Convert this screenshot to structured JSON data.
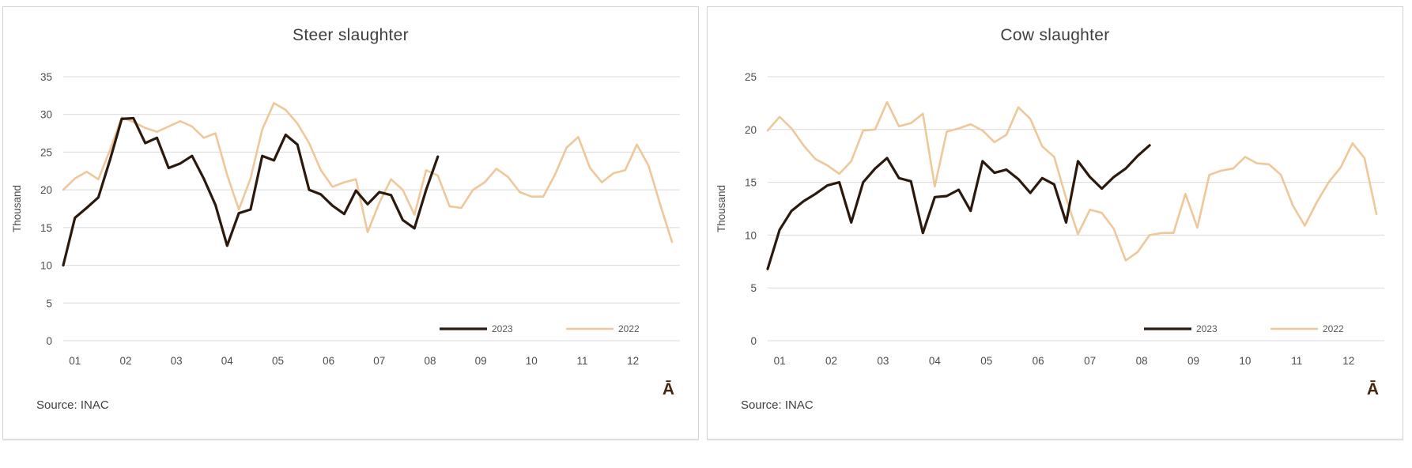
{
  "page": {
    "background": "#ffffff",
    "panel_border": "#d2d2d2",
    "grid_color": "#d9d9d9",
    "text_color": "#3f3f3f"
  },
  "chart_data": [
    {
      "type": "line",
      "title": "Steer slaughter",
      "y_axis_label": "Thousand",
      "source": "Source: INAC",
      "watermark": "Ā",
      "ylim": [
        0,
        35
      ],
      "ytick_step": 5,
      "yticks": [
        0,
        5,
        10,
        15,
        20,
        25,
        30,
        35
      ],
      "x_categories": [
        "01",
        "02",
        "03",
        "04",
        "05",
        "06",
        "07",
        "08",
        "09",
        "10",
        "11",
        "12"
      ],
      "x_note": "weekly observations, months 01-12",
      "grid": "horizontal",
      "legend_position": "inside-bottom-right",
      "series": [
        {
          "name": "2023",
          "color": "#2b190d",
          "values": [
            10.0,
            16.3,
            17.6,
            19.0,
            24.0,
            29.4,
            29.5,
            26.2,
            26.9,
            22.9,
            23.5,
            24.5,
            21.5,
            18.0,
            12.6,
            16.9,
            17.4,
            24.5,
            23.9,
            27.3,
            26.0,
            20.0,
            19.4,
            17.9,
            16.8,
            19.9,
            18.1,
            19.7,
            19.3,
            16.0,
            14.9,
            20.0,
            24.4
          ]
        },
        {
          "name": "2022",
          "color": "#eec79a",
          "values": [
            20.0,
            21.5,
            22.4,
            21.4,
            25.3,
            29.6,
            29.0,
            28.2,
            27.7,
            28.4,
            29.1,
            28.4,
            26.9,
            27.5,
            22.0,
            17.4,
            21.5,
            28.0,
            31.5,
            30.6,
            28.8,
            26.2,
            22.6,
            20.4,
            21.0,
            21.4,
            14.4,
            18.3,
            21.4,
            20.0,
            16.7,
            22.6,
            21.9,
            17.8,
            17.6,
            20.0,
            21.0,
            22.8,
            21.7,
            19.7,
            19.1,
            19.1,
            22.0,
            25.6,
            27.0,
            22.9,
            21.0,
            22.2,
            22.6,
            26.0,
            23.2,
            18.0,
            13.1
          ]
        }
      ]
    },
    {
      "type": "line",
      "title": "Cow slaughter",
      "y_axis_label": "Thousand",
      "source": "Source: INAC",
      "watermark": "Ā",
      "ylim": [
        0,
        25
      ],
      "ytick_step": 5,
      "yticks": [
        0,
        5,
        10,
        15,
        20,
        25
      ],
      "x_categories": [
        "01",
        "02",
        "03",
        "04",
        "05",
        "06",
        "07",
        "08",
        "09",
        "10",
        "11",
        "12"
      ],
      "x_note": "weekly observations, months 01-12",
      "grid": "horizontal",
      "legend_position": "inside-bottom-right",
      "series": [
        {
          "name": "2023",
          "color": "#2b190d",
          "values": [
            6.8,
            10.5,
            12.3,
            13.2,
            13.9,
            14.7,
            15.0,
            11.2,
            15.0,
            16.3,
            17.3,
            15.4,
            15.1,
            10.2,
            13.6,
            13.7,
            14.3,
            12.3,
            17.0,
            15.9,
            16.2,
            15.3,
            14.0,
            15.4,
            14.8,
            11.2,
            17.0,
            15.5,
            14.4,
            15.5,
            16.3,
            17.5,
            18.5
          ]
        },
        {
          "name": "2022",
          "color": "#eec79a",
          "values": [
            19.9,
            21.2,
            20.1,
            18.5,
            17.2,
            16.6,
            15.8,
            17.0,
            19.9,
            20.0,
            22.6,
            20.3,
            20.6,
            21.5,
            14.6,
            19.8,
            20.1,
            20.5,
            19.9,
            18.8,
            19.5,
            22.1,
            21.0,
            18.4,
            17.4,
            13.5,
            10.1,
            12.4,
            12.1,
            10.6,
            7.6,
            8.4,
            10.0,
            10.2,
            10.2,
            13.9,
            10.7,
            15.7,
            16.1,
            16.3,
            17.4,
            16.8,
            16.7,
            15.7,
            12.8,
            10.9,
            13.1,
            15.0,
            16.4,
            18.7,
            17.3,
            12.0
          ]
        }
      ]
    }
  ]
}
